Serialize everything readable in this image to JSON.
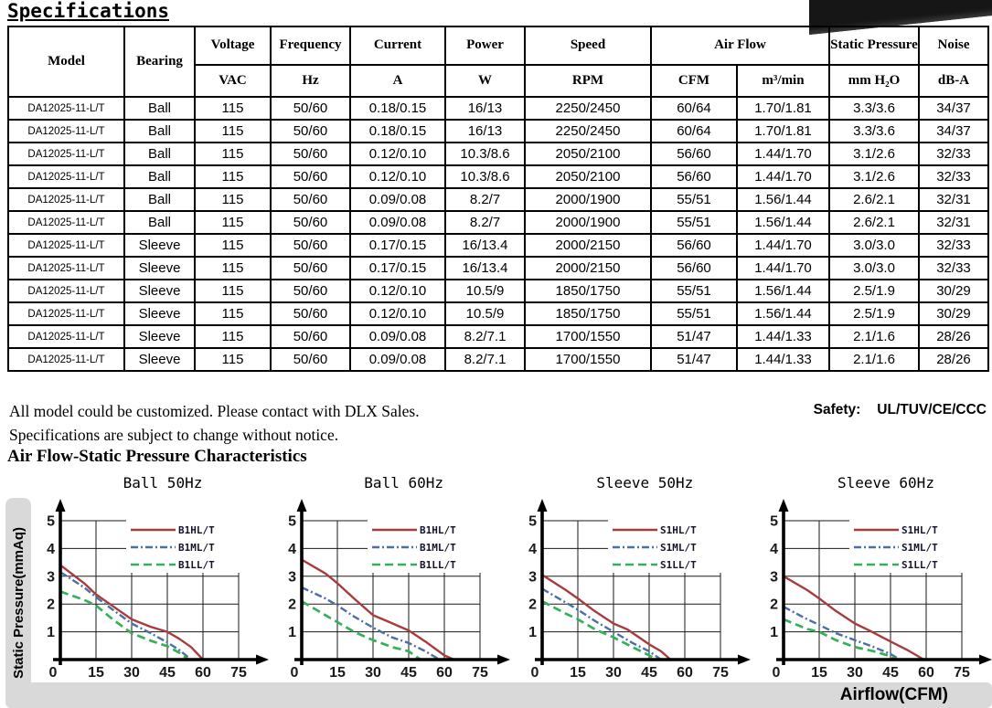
{
  "page": {
    "title": "Specifications"
  },
  "table": {
    "header": {
      "model": "Model",
      "bearing": "Bearing",
      "voltage": "Voltage",
      "voltage_unit": "VAC",
      "frequency": "Frequency",
      "frequency_unit": "Hz",
      "current": "Current",
      "current_unit": "A",
      "power": "Power",
      "power_unit": "W",
      "speed": "Speed",
      "speed_unit": "RPM",
      "airflow": "Air Flow",
      "airflow_unit1": "CFM",
      "airflow_unit2": "m³/min",
      "static_pressure": "Static Pressure",
      "static_pressure_unit": "mm H₂O",
      "noise": "Noise",
      "noise_unit": "dB-A"
    },
    "rows": [
      [
        "DA12025-11-L/T",
        "Ball",
        "115",
        "50/60",
        "0.18/0.15",
        "16/13",
        "2250/2450",
        "60/64",
        "1.70/1.81",
        "3.3/3.6",
        "34/37"
      ],
      [
        "DA12025-11-L/T",
        "Ball",
        "115",
        "50/60",
        "0.18/0.15",
        "16/13",
        "2250/2450",
        "60/64",
        "1.70/1.81",
        "3.3/3.6",
        "34/37"
      ],
      [
        "DA12025-11-L/T",
        "Ball",
        "115",
        "50/60",
        "0.12/0.10",
        "10.3/8.6",
        "2050/2100",
        "56/60",
        "1.44/1.70",
        "3.1/2.6",
        "32/33"
      ],
      [
        "DA12025-11-L/T",
        "Ball",
        "115",
        "50/60",
        "0.12/0.10",
        "10.3/8.6",
        "2050/2100",
        "56/60",
        "1.44/1.70",
        "3.1/2.6",
        "32/33"
      ],
      [
        "DA12025-11-L/T",
        "Ball",
        "115",
        "50/60",
        "0.09/0.08",
        "8.2/7",
        "2000/1900",
        "55/51",
        "1.56/1.44",
        "2.6/2.1",
        "32/31"
      ],
      [
        "DA12025-11-L/T",
        "Ball",
        "115",
        "50/60",
        "0.09/0.08",
        "8.2/7",
        "2000/1900",
        "55/51",
        "1.56/1.44",
        "2.6/2.1",
        "32/31"
      ],
      [
        "DA12025-11-L/T",
        "Sleeve",
        "115",
        "50/60",
        "0.17/0.15",
        "16/13.4",
        "2000/2150",
        "56/60",
        "1.44/1.70",
        "3.0/3.0",
        "32/33"
      ],
      [
        "DA12025-11-L/T",
        "Sleeve",
        "115",
        "50/60",
        "0.17/0.15",
        "16/13.4",
        "2000/2150",
        "56/60",
        "1.44/1.70",
        "3.0/3.0",
        "32/33"
      ],
      [
        "DA12025-11-L/T",
        "Sleeve",
        "115",
        "50/60",
        "0.12/0.10",
        "10.5/9",
        "1850/1750",
        "55/51",
        "1.56/1.44",
        "2.5/1.9",
        "30/29"
      ],
      [
        "DA12025-11-L/T",
        "Sleeve",
        "115",
        "50/60",
        "0.12/0.10",
        "10.5/9",
        "1850/1750",
        "55/51",
        "1.56/1.44",
        "2.5/1.9",
        "30/29"
      ],
      [
        "DA12025-11-L/T",
        "Sleeve",
        "115",
        "50/60",
        "0.09/0.08",
        "8.2/7.1",
        "1700/1550",
        "51/47",
        "1.44/1.33",
        "2.1/1.6",
        "28/26"
      ],
      [
        "DA12025-11-L/T",
        "Sleeve",
        "115",
        "50/60",
        "0.09/0.08",
        "8.2/7.1",
        "1700/1550",
        "51/47",
        "1.44/1.33",
        "2.1/1.6",
        "28/26"
      ]
    ]
  },
  "notes": {
    "line1": "All model could be customized. Please contact with DLX Sales.",
    "line2": "Specifications are subject to change without notice.",
    "safety_label": "Safety:",
    "safety_value": "UL/TUV/CE/CCC"
  },
  "charts_section": {
    "title": "Air Flow-Static Pressure Characteristics",
    "y_axis_label": "Static Pressure(mmAq)",
    "x_axis_label": "Airflow(CFM)"
  },
  "chart_data": [
    {
      "type": "line",
      "title": "Ball 50Hz",
      "xlabel": "Airflow(CFM)",
      "ylabel": "Static Pressure(mmAq)",
      "xlim": [
        0,
        75
      ],
      "ylim": [
        0,
        5
      ],
      "xticks": [
        0,
        15,
        30,
        45,
        60,
        75
      ],
      "yticks": [
        0,
        1,
        2,
        3,
        4,
        5
      ],
      "grid": true,
      "legend_position": "top-right",
      "series": [
        {
          "name": "B1HL/T",
          "color": "#a83c3c",
          "style": "solid",
          "points": [
            [
              0,
              3.4
            ],
            [
              10,
              2.75
            ],
            [
              15,
              2.35
            ],
            [
              20,
              2.05
            ],
            [
              25,
              1.75
            ],
            [
              30,
              1.45
            ],
            [
              38,
              1.18
            ],
            [
              45,
              1.0
            ],
            [
              50,
              0.75
            ],
            [
              55,
              0.45
            ],
            [
              60,
              0
            ]
          ]
        },
        {
          "name": "B1ML/T",
          "color": "#4a6fa5",
          "style": "dashdot",
          "points": [
            [
              0,
              3.15
            ],
            [
              10,
              2.6
            ],
            [
              15,
              2.25
            ],
            [
              22,
              1.8
            ],
            [
              30,
              1.3
            ],
            [
              38,
              0.95
            ],
            [
              45,
              0.62
            ],
            [
              50,
              0.35
            ],
            [
              55,
              0
            ]
          ]
        },
        {
          "name": "B1LL/T",
          "color": "#33b05a",
          "style": "dashed",
          "points": [
            [
              0,
              2.45
            ],
            [
              10,
              2.15
            ],
            [
              15,
              1.95
            ],
            [
              22,
              1.45
            ],
            [
              30,
              0.95
            ],
            [
              38,
              0.68
            ],
            [
              45,
              0.48
            ],
            [
              50,
              0.25
            ],
            [
              54,
              0
            ]
          ]
        }
      ]
    },
    {
      "type": "line",
      "title": "Ball 60Hz",
      "xlabel": "Airflow(CFM)",
      "ylabel": "Static Pressure(mmAq)",
      "xlim": [
        0,
        75
      ],
      "ylim": [
        0,
        5
      ],
      "xticks": [
        0,
        15,
        30,
        45,
        60,
        75
      ],
      "yticks": [
        0,
        1,
        2,
        3,
        4,
        5
      ],
      "grid": true,
      "legend_position": "top-right",
      "series": [
        {
          "name": "B1HL/T",
          "color": "#a83c3c",
          "style": "solid",
          "points": [
            [
              0,
              3.6
            ],
            [
              10,
              3.1
            ],
            [
              15,
              2.75
            ],
            [
              22,
              2.2
            ],
            [
              30,
              1.6
            ],
            [
              36,
              1.38
            ],
            [
              45,
              1.05
            ],
            [
              52,
              0.65
            ],
            [
              60,
              0.15
            ],
            [
              64,
              0
            ]
          ]
        },
        {
          "name": "B1ML/T",
          "color": "#4a6fa5",
          "style": "dashdot",
          "points": [
            [
              0,
              2.6
            ],
            [
              10,
              2.2
            ],
            [
              15,
              1.95
            ],
            [
              22,
              1.55
            ],
            [
              30,
              1.15
            ],
            [
              38,
              0.8
            ],
            [
              45,
              0.6
            ],
            [
              52,
              0.3
            ],
            [
              58,
              0
            ]
          ]
        },
        {
          "name": "B1LL/T",
          "color": "#33b05a",
          "style": "dashed",
          "points": [
            [
              0,
              2.1
            ],
            [
              10,
              1.6
            ],
            [
              15,
              1.35
            ],
            [
              22,
              1.0
            ],
            [
              30,
              0.7
            ],
            [
              38,
              0.45
            ],
            [
              45,
              0.3
            ],
            [
              50,
              0
            ]
          ]
        }
      ]
    },
    {
      "type": "line",
      "title": "Sleeve 50Hz",
      "xlabel": "Airflow(CFM)",
      "ylabel": "Static Pressure(mmAq)",
      "xlim": [
        0,
        75
      ],
      "ylim": [
        0,
        5
      ],
      "xticks": [
        0,
        15,
        30,
        45,
        60,
        75
      ],
      "yticks": [
        0,
        1,
        2,
        3,
        4,
        5
      ],
      "grid": true,
      "legend_position": "top-right",
      "series": [
        {
          "name": "S1HL/T",
          "color": "#a83c3c",
          "style": "solid",
          "points": [
            [
              0,
              3.05
            ],
            [
              10,
              2.5
            ],
            [
              15,
              2.2
            ],
            [
              22,
              1.75
            ],
            [
              30,
              1.3
            ],
            [
              36,
              1.08
            ],
            [
              45,
              0.55
            ],
            [
              50,
              0.3
            ],
            [
              54,
              0
            ]
          ]
        },
        {
          "name": "S1ML/T",
          "color": "#4a6fa5",
          "style": "dashdot",
          "points": [
            [
              0,
              2.55
            ],
            [
              10,
              2.05
            ],
            [
              15,
              1.8
            ],
            [
              22,
              1.4
            ],
            [
              30,
              1.0
            ],
            [
              38,
              0.6
            ],
            [
              45,
              0.3
            ],
            [
              50,
              0
            ]
          ]
        },
        {
          "name": "S1LL/T",
          "color": "#33b05a",
          "style": "dashed",
          "points": [
            [
              0,
              2.1
            ],
            [
              10,
              1.65
            ],
            [
              15,
              1.45
            ],
            [
              22,
              1.1
            ],
            [
              30,
              0.8
            ],
            [
              38,
              0.45
            ],
            [
              45,
              0.15
            ],
            [
              48,
              0
            ]
          ]
        }
      ]
    },
    {
      "type": "line",
      "title": "Sleeve 60Hz",
      "xlabel": "Airflow(CFM)",
      "ylabel": "Static Pressure(mmAq)",
      "xlim": [
        0,
        75
      ],
      "ylim": [
        0,
        5
      ],
      "xticks": [
        0,
        15,
        30,
        45,
        60,
        75
      ],
      "yticks": [
        0,
        1,
        2,
        3,
        4,
        5
      ],
      "grid": true,
      "legend_position": "top-right",
      "series": [
        {
          "name": "S1HL/T",
          "color": "#a83c3c",
          "style": "solid",
          "points": [
            [
              0,
              3.0
            ],
            [
              10,
              2.5
            ],
            [
              15,
              2.2
            ],
            [
              22,
              1.75
            ],
            [
              30,
              1.3
            ],
            [
              36,
              1.05
            ],
            [
              45,
              0.65
            ],
            [
              52,
              0.35
            ],
            [
              59,
              0
            ]
          ]
        },
        {
          "name": "S1ML/T",
          "color": "#4a6fa5",
          "style": "dashdot",
          "points": [
            [
              0,
              1.9
            ],
            [
              10,
              1.45
            ],
            [
              15,
              1.25
            ],
            [
              22,
              0.95
            ],
            [
              30,
              0.7
            ],
            [
              38,
              0.45
            ],
            [
              45,
              0.2
            ],
            [
              49,
              0
            ]
          ]
        },
        {
          "name": "S1LL/T",
          "color": "#33b05a",
          "style": "dashed",
          "points": [
            [
              0,
              1.45
            ],
            [
              10,
              1.1
            ],
            [
              15,
              1.0
            ],
            [
              22,
              0.7
            ],
            [
              30,
              0.45
            ],
            [
              38,
              0.3
            ],
            [
              45,
              0.12
            ],
            [
              48,
              0
            ]
          ]
        }
      ]
    }
  ]
}
